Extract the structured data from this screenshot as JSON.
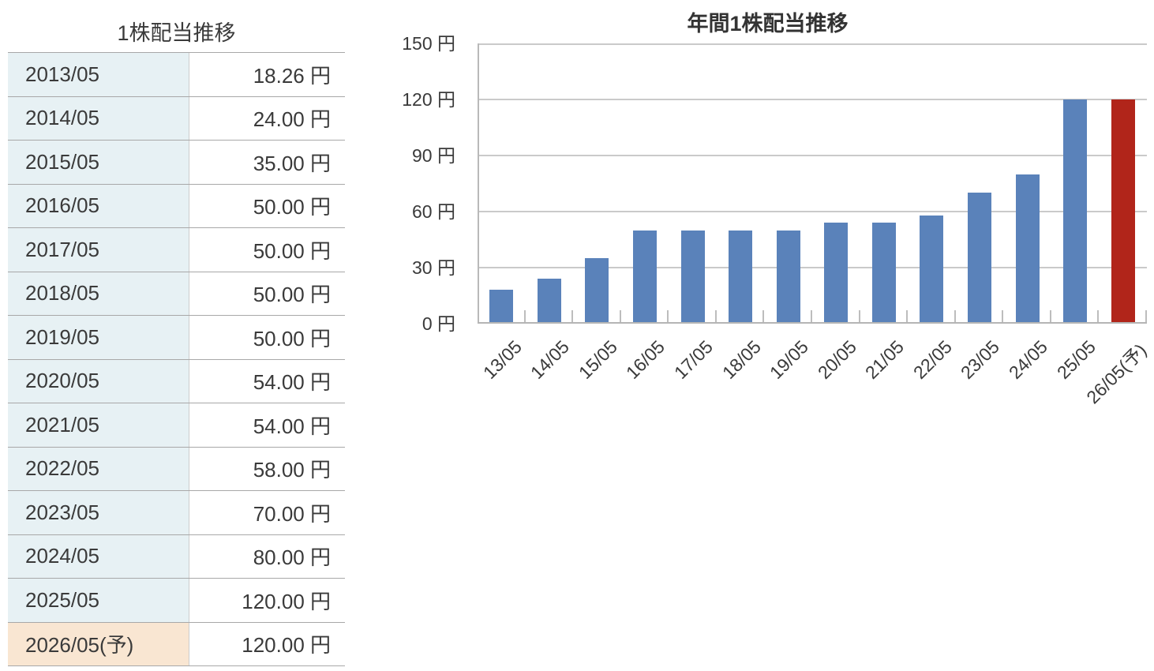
{
  "table": {
    "title": "1株配当推移",
    "rows": [
      {
        "year": "2013/05",
        "value": "18.26 円",
        "forecast": false
      },
      {
        "year": "2014/05",
        "value": "24.00 円",
        "forecast": false
      },
      {
        "year": "2015/05",
        "value": "35.00 円",
        "forecast": false
      },
      {
        "year": "2016/05",
        "value": "50.00 円",
        "forecast": false
      },
      {
        "year": "2017/05",
        "value": "50.00 円",
        "forecast": false
      },
      {
        "year": "2018/05",
        "value": "50.00 円",
        "forecast": false
      },
      {
        "year": "2019/05",
        "value": "50.00 円",
        "forecast": false
      },
      {
        "year": "2020/05",
        "value": "54.00 円",
        "forecast": false
      },
      {
        "year": "2021/05",
        "value": "54.00 円",
        "forecast": false
      },
      {
        "year": "2022/05",
        "value": "58.00 円",
        "forecast": false
      },
      {
        "year": "2023/05",
        "value": "70.00 円",
        "forecast": false
      },
      {
        "year": "2024/05",
        "value": "80.00 円",
        "forecast": false
      },
      {
        "year": "2025/05",
        "value": "120.00 円",
        "forecast": false
      },
      {
        "year": "2026/05(予)",
        "value": "120.00 円",
        "forecast": true
      }
    ]
  },
  "chart": {
    "title": "年間1株配当推移",
    "y_ticks": [
      "150 円",
      "120 円",
      "90 円",
      "60 円",
      "30 円",
      "0 円"
    ]
  },
  "chart_data": {
    "type": "bar",
    "title": "年間1株配当推移",
    "categories": [
      "13/05",
      "14/05",
      "15/05",
      "16/05",
      "17/05",
      "18/05",
      "19/05",
      "20/05",
      "21/05",
      "22/05",
      "23/05",
      "24/05",
      "25/05",
      "26/05(予)"
    ],
    "values": [
      18.26,
      24,
      35,
      50,
      50,
      50,
      50,
      54,
      54,
      58,
      70,
      80,
      120,
      120
    ],
    "forecast_index": 13,
    "xlabel": "",
    "ylabel": "円",
    "ylim": [
      0,
      150
    ],
    "ytick_interval": 30,
    "grid": true,
    "legend": false,
    "colors": {
      "bar": "#5a82ba",
      "forecast_bar": "#b1251a",
      "gridline": "#cacaca",
      "axis": "#b5b5b5",
      "text": "#3a3a3a"
    }
  }
}
